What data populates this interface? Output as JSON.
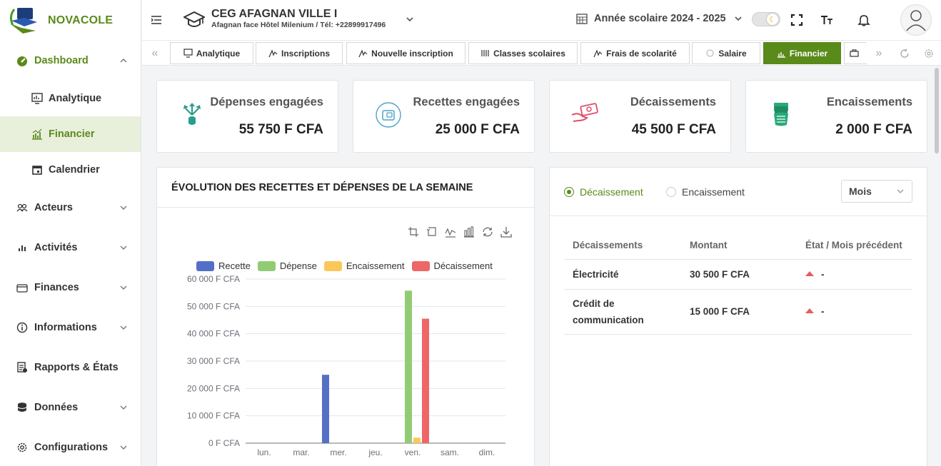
{
  "app": {
    "brand": "NOVACOLE",
    "colors": {
      "primary": "#5a8a1a",
      "active_bg": "#e8f0dc"
    }
  },
  "sidebar": {
    "items": [
      {
        "label": "Dashboard",
        "icon": "dashboard-icon",
        "expanded": true
      },
      {
        "label": "Acteurs",
        "icon": "users-icon"
      },
      {
        "label": "Activités",
        "icon": "bar-chart-icon"
      },
      {
        "label": "Finances",
        "icon": "wallet-icon"
      },
      {
        "label": "Informations",
        "icon": "info-icon"
      },
      {
        "label": "Rapports & États",
        "icon": "report-icon"
      },
      {
        "label": "Données",
        "icon": "database-icon"
      },
      {
        "label": "Configurations",
        "icon": "gear-icon"
      }
    ],
    "dashboard_sub": [
      {
        "label": "Analytique",
        "icon": "analytics-icon"
      },
      {
        "label": "Financier",
        "icon": "finance-chart-icon",
        "active": true
      },
      {
        "label": "Calendrier",
        "icon": "calendar-icon"
      }
    ]
  },
  "header": {
    "school_name": "CEG AFAGNAN VILLE I",
    "school_address": "Afagnan face Hôtel Milenium / Tél: +22899917496",
    "school_year": "Année scolaire 2024 - 2025"
  },
  "tabs": [
    {
      "label": "Analytique"
    },
    {
      "label": "Inscriptions"
    },
    {
      "label": "Nouvelle inscription"
    },
    {
      "label": "Classes scolaires"
    },
    {
      "label": "Frais de scolarité"
    },
    {
      "label": "Salaire"
    },
    {
      "label": "Financier",
      "active": true
    }
  ],
  "stats": [
    {
      "title": "Dépenses engagées",
      "value": "55 750 F CFA",
      "icon": "expense-icon",
      "color": "#2a9d8f"
    },
    {
      "title": "Recettes engagées",
      "value": "25 000 F CFA",
      "icon": "wallet-circle-icon",
      "color": "#4aa3c8"
    },
    {
      "title": "Décaissements",
      "value": "45 500 F CFA",
      "icon": "cash-out-icon",
      "color": "#e04e6a"
    },
    {
      "title": "Encaissements",
      "value": "2 000 F CFA",
      "icon": "cash-in-icon",
      "color": "#2aa87a"
    }
  ],
  "chart_card": {
    "title": "ÉVOLUTION DES RECETTES ET DÉPENSES DE LA SEMAINE"
  },
  "chart_data": {
    "type": "bar",
    "categories": [
      "lun.",
      "mar.",
      "mer.",
      "jeu.",
      "ven.",
      "sam.",
      "dim."
    ],
    "series": [
      {
        "name": "Recette",
        "color": "#5470c6",
        "values": [
          0,
          0,
          25000,
          0,
          0,
          0,
          0
        ]
      },
      {
        "name": "Dépense",
        "color": "#91cc75",
        "values": [
          0,
          0,
          0,
          0,
          55750,
          0,
          0
        ]
      },
      {
        "name": "Encaissement",
        "color": "#fac858",
        "values": [
          0,
          0,
          0,
          0,
          2000,
          0,
          0
        ]
      },
      {
        "name": "Décaissement",
        "color": "#ee6666",
        "values": [
          0,
          0,
          0,
          0,
          45500,
          0,
          0
        ]
      }
    ],
    "yticks": [
      "0 F CFA",
      "10 000 F CFA",
      "20 000 F CFA",
      "30 000 F CFA",
      "40 000 F CFA",
      "50 000 F CFA",
      "60 000 F CFA"
    ],
    "ylim": [
      0,
      60000
    ],
    "legend_position": "top",
    "grid": true
  },
  "movements": {
    "radio_out": "Décaissement",
    "radio_in": "Encaissement",
    "period": "Mois",
    "columns": [
      "Décaissements",
      "Montant",
      "État / Mois précédent"
    ],
    "rows": [
      {
        "label1": "Électricité",
        "label2": "",
        "amount": "30 500 F CFA",
        "state": "-"
      },
      {
        "label1": "Crédit de",
        "label2": "communication",
        "amount": "15 000 F CFA",
        "state": "-"
      }
    ]
  }
}
